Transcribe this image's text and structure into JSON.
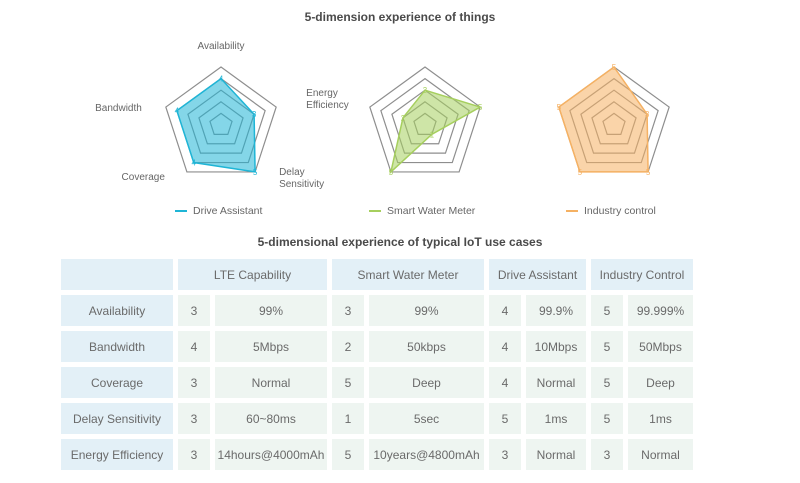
{
  "chart_data": [
    {
      "type": "radar",
      "title": "5-dimension experience of things",
      "axes": [
        "Availability",
        "Energy Efficiency",
        "Delay Sensitivity",
        "Coverage",
        "Bandwidth"
      ],
      "rmax": 5,
      "series": [
        {
          "name": "Drive Assistant",
          "values": [
            4,
            3,
            5,
            4,
            4
          ],
          "color": "#1fb5d6"
        }
      ]
    },
    {
      "type": "radar",
      "axes": [
        "Availability",
        "Energy Efficiency",
        "Delay Sensitivity",
        "Coverage",
        "Bandwidth"
      ],
      "rmax": 5,
      "series": [
        {
          "name": "Smart Water Meter",
          "values": [
            3,
            5,
            1,
            5,
            2
          ],
          "color": "#a6cf5e"
        }
      ]
    },
    {
      "type": "radar",
      "axes": [
        "Availability",
        "Energy Efficiency",
        "Delay Sensitivity",
        "Coverage",
        "Bandwidth"
      ],
      "rmax": 5,
      "series": [
        {
          "name": "Industry control",
          "values": [
            5,
            3,
            5,
            5,
            5
          ],
          "color": "#f5b163"
        }
      ]
    },
    {
      "type": "table",
      "title": "5-dimensional experience of typical IoT use cases",
      "columns": [
        "LTE Capability",
        "Smart Water Meter",
        "Drive Assistant",
        "Industry Control"
      ],
      "rows": [
        {
          "label": "Availability",
          "cells": [
            [
              "3",
              "99%"
            ],
            [
              "3",
              "99%"
            ],
            [
              "4",
              "99.9%"
            ],
            [
              "5",
              "99.999%"
            ]
          ]
        },
        {
          "label": "Bandwidth",
          "cells": [
            [
              "4",
              "5Mbps"
            ],
            [
              "2",
              "50kbps"
            ],
            [
              "4",
              "10Mbps"
            ],
            [
              "5",
              "50Mbps"
            ]
          ]
        },
        {
          "label": "Coverage",
          "cells": [
            [
              "3",
              "Normal"
            ],
            [
              "5",
              "Deep"
            ],
            [
              "4",
              "Normal"
            ],
            [
              "5",
              "Deep"
            ]
          ]
        },
        {
          "label": "Delay Sensitivity",
          "cells": [
            [
              "3",
              "60~80ms"
            ],
            [
              "1",
              "5sec"
            ],
            [
              "5",
              "1ms"
            ],
            [
              "5",
              "1ms"
            ]
          ]
        },
        {
          "label": "Energy Efficiency",
          "cells": [
            [
              "3",
              "14hours@4000mAh"
            ],
            [
              "5",
              "10years@4800mAh"
            ],
            [
              "3",
              "Normal"
            ],
            [
              "3",
              "Normal"
            ]
          ]
        }
      ]
    }
  ]
}
